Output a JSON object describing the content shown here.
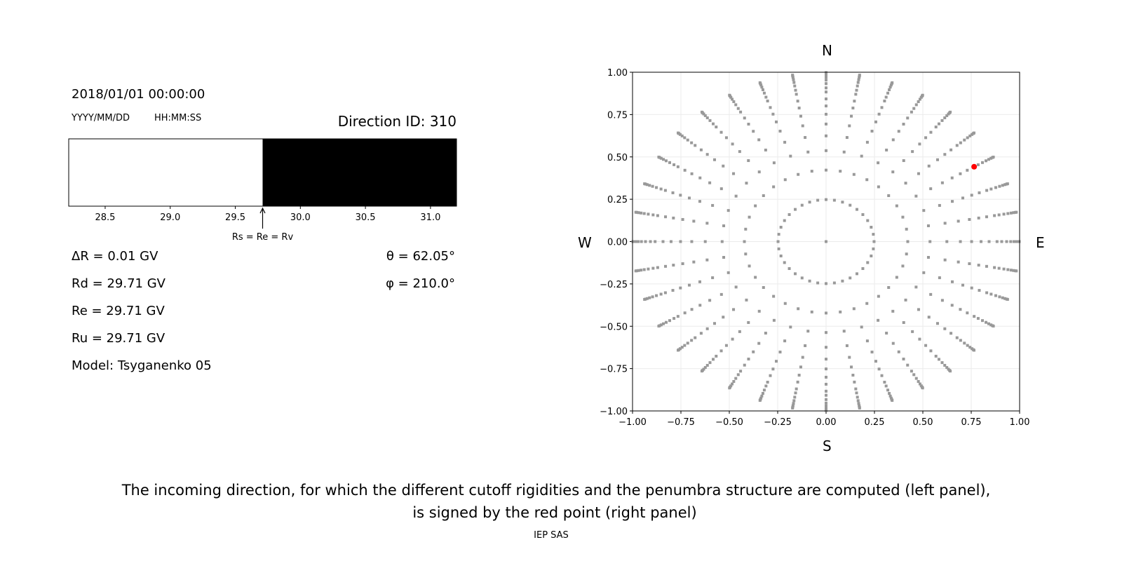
{
  "left_panel": {
    "datetime": "2018/01/01 00:00:00",
    "date_format": "YYYY/MM/DD",
    "time_format": "HH:MM:SS",
    "direction_id": "Direction ID: 310",
    "penumbra_bar": {
      "xlim": [
        28.22,
        31.2
      ],
      "ticks": [
        "28.5",
        "29.0",
        "29.5",
        "30.0",
        "30.5",
        "31.0"
      ],
      "segments": [
        {
          "from": 28.22,
          "to": 29.71,
          "color": "#ffffff"
        },
        {
          "from": 29.71,
          "to": 31.2,
          "color": "#000000"
        }
      ],
      "marker_value": 29.71,
      "marker_label": "Rs = Re = Rv"
    },
    "values": [
      {
        "label": "ΔR = 0.01 GV"
      },
      {
        "label": "Rd = 29.71 GV"
      },
      {
        "label": "Re = 29.71 GV"
      },
      {
        "label": "Ru = 29.71 GV"
      },
      {
        "label": "Model: Tsyganenko 05"
      }
    ],
    "theta_label": "θ = 62.05°",
    "phi_label": "φ = 210.0°"
  },
  "chart_data": {
    "type": "scatter",
    "xlim": [
      -1.0,
      1.0
    ],
    "ylim": [
      -1.0,
      1.0
    ],
    "xticks": [
      "−1.00",
      "−0.75",
      "−0.50",
      "−0.25",
      "0.00",
      "0.25",
      "0.50",
      "0.75",
      "1.00"
    ],
    "yticks": [
      "−1.00",
      "−0.75",
      "−0.50",
      "−0.25",
      "0.00",
      "0.25",
      "0.50",
      "0.75",
      "1.00"
    ],
    "grid": true,
    "compass": {
      "north": "N",
      "south": "S",
      "west": "W",
      "east": "E"
    },
    "directions": {
      "center": [
        0.0,
        0.0
      ],
      "zenith_deg": [
        14.36,
        24.96,
        32.48,
        38.62,
        43.95,
        48.76,
        53.21,
        57.39,
        62.05,
        65.16,
        68.9,
        72.54,
        76.09,
        79.59,
        83.03,
        86.42
      ],
      "azimuth_deg_step": 10,
      "color": "#999999"
    },
    "highlight": {
      "theta_deg": 62.05,
      "phi_deg": 210.0,
      "x": 0.765,
      "y": 0.442,
      "color": "#ff0000"
    }
  },
  "caption": {
    "line1": "The incoming direction, for which the different cutoff rigidities and the penumbra structure are computed (left panel),",
    "line2": "is signed by the red point (right panel)",
    "credit": "IEP SAS"
  }
}
